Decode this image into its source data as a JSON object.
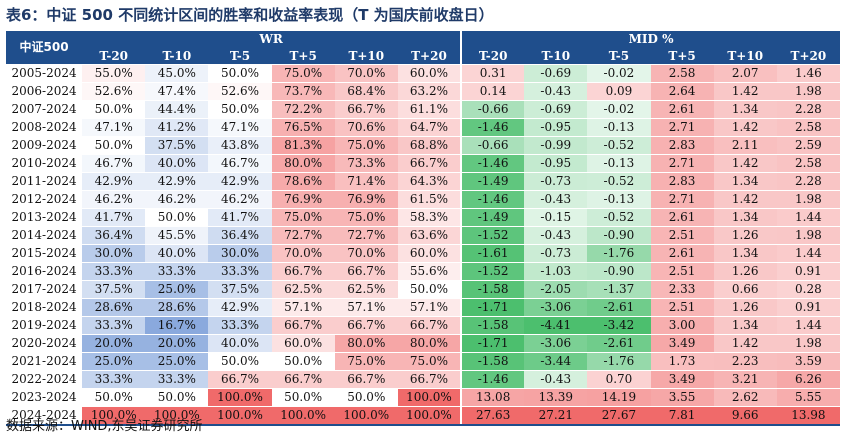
{
  "title": "表6：中证 500 不同统计区间的胜率和收益率表现（T 为国庆前收盘日）",
  "corner_label": "中证500",
  "groups": {
    "wr": "WR",
    "mid": "MID %"
  },
  "columns": [
    "T-20",
    "T-10",
    "T-5",
    "T+5",
    "T+10",
    "T+20"
  ],
  "rows": [
    {
      "period": "2005-2024",
      "wr": [
        "55.0%",
        "45.0%",
        "50.0%",
        "75.0%",
        "70.0%",
        "60.0%"
      ],
      "mid": [
        "0.31",
        "-0.69",
        "-0.02",
        "2.58",
        "2.07",
        "1.46"
      ]
    },
    {
      "period": "2006-2024",
      "wr": [
        "52.6%",
        "47.4%",
        "52.6%",
        "73.7%",
        "68.4%",
        "63.2%"
      ],
      "mid": [
        "0.14",
        "-0.43",
        "0.09",
        "2.64",
        "1.42",
        "1.98"
      ]
    },
    {
      "period": "2007-2024",
      "wr": [
        "50.0%",
        "44.4%",
        "50.0%",
        "72.2%",
        "66.7%",
        "61.1%"
      ],
      "mid": [
        "-0.66",
        "-0.69",
        "-0.02",
        "2.61",
        "1.34",
        "2.28"
      ]
    },
    {
      "period": "2008-2024",
      "wr": [
        "47.1%",
        "41.2%",
        "47.1%",
        "76.5%",
        "70.6%",
        "64.7%"
      ],
      "mid": [
        "-1.46",
        "-0.95",
        "-0.13",
        "2.71",
        "1.42",
        "2.58"
      ]
    },
    {
      "period": "2009-2024",
      "wr": [
        "50.0%",
        "37.5%",
        "43.8%",
        "81.3%",
        "75.0%",
        "68.8%"
      ],
      "mid": [
        "-0.66",
        "-0.99",
        "-0.52",
        "2.83",
        "2.11",
        "2.59"
      ]
    },
    {
      "period": "2010-2024",
      "wr": [
        "46.7%",
        "40.0%",
        "46.7%",
        "80.0%",
        "73.3%",
        "66.7%"
      ],
      "mid": [
        "-1.46",
        "-0.95",
        "-0.13",
        "2.71",
        "1.42",
        "2.58"
      ]
    },
    {
      "period": "2011-2024",
      "wr": [
        "42.9%",
        "42.9%",
        "42.9%",
        "78.6%",
        "71.4%",
        "64.3%"
      ],
      "mid": [
        "-1.49",
        "-0.73",
        "-0.52",
        "2.83",
        "1.34",
        "2.28"
      ]
    },
    {
      "period": "2012-2024",
      "wr": [
        "46.2%",
        "46.2%",
        "46.2%",
        "76.9%",
        "76.9%",
        "61.5%"
      ],
      "mid": [
        "-1.46",
        "-0.43",
        "-0.13",
        "2.71",
        "1.42",
        "1.98"
      ]
    },
    {
      "period": "2013-2024",
      "wr": [
        "41.7%",
        "50.0%",
        "41.7%",
        "75.0%",
        "75.0%",
        "58.3%"
      ],
      "mid": [
        "-1.49",
        "-0.15",
        "-0.52",
        "2.61",
        "1.34",
        "1.44"
      ]
    },
    {
      "period": "2014-2024",
      "wr": [
        "36.4%",
        "45.5%",
        "36.4%",
        "72.7%",
        "72.7%",
        "63.6%"
      ],
      "mid": [
        "-1.52",
        "-0.43",
        "-0.90",
        "2.51",
        "1.26",
        "1.98"
      ]
    },
    {
      "period": "2015-2024",
      "wr": [
        "30.0%",
        "40.0%",
        "30.0%",
        "70.0%",
        "70.0%",
        "60.0%"
      ],
      "mid": [
        "-1.61",
        "-0.73",
        "-1.76",
        "2.61",
        "1.34",
        "1.44"
      ]
    },
    {
      "period": "2016-2024",
      "wr": [
        "33.3%",
        "33.3%",
        "33.3%",
        "66.7%",
        "66.7%",
        "55.6%"
      ],
      "mid": [
        "-1.52",
        "-1.03",
        "-0.90",
        "2.51",
        "1.26",
        "0.91"
      ]
    },
    {
      "period": "2017-2024",
      "wr": [
        "37.5%",
        "25.0%",
        "37.5%",
        "62.5%",
        "62.5%",
        "50.0%"
      ],
      "mid": [
        "-1.58",
        "-2.05",
        "-1.37",
        "2.33",
        "0.66",
        "0.28"
      ]
    },
    {
      "period": "2018-2024",
      "wr": [
        "28.6%",
        "28.6%",
        "42.9%",
        "57.1%",
        "57.1%",
        "57.1%"
      ],
      "mid": [
        "-1.71",
        "-3.06",
        "-2.61",
        "2.51",
        "1.26",
        "0.91"
      ]
    },
    {
      "period": "2019-2024",
      "wr": [
        "33.3%",
        "16.7%",
        "33.3%",
        "66.7%",
        "66.7%",
        "66.7%"
      ],
      "mid": [
        "-1.58",
        "-4.41",
        "-3.42",
        "3.00",
        "1.34",
        "1.44"
      ]
    },
    {
      "period": "2020-2024",
      "wr": [
        "20.0%",
        "20.0%",
        "40.0%",
        "60.0%",
        "80.0%",
        "80.0%"
      ],
      "mid": [
        "-1.71",
        "-3.06",
        "-2.61",
        "3.49",
        "1.42",
        "1.98"
      ]
    },
    {
      "period": "2021-2024",
      "wr": [
        "25.0%",
        "25.0%",
        "50.0%",
        "50.0%",
        "75.0%",
        "75.0%"
      ],
      "mid": [
        "-1.58",
        "-3.44",
        "-1.76",
        "1.73",
        "2.23",
        "3.59"
      ]
    },
    {
      "period": "2022-2024",
      "wr": [
        "33.3%",
        "33.3%",
        "66.7%",
        "66.7%",
        "66.7%",
        "66.7%"
      ],
      "mid": [
        "-1.46",
        "-0.43",
        "0.70",
        "3.49",
        "3.21",
        "6.26"
      ]
    },
    {
      "period": "2023-2024",
      "wr": [
        "50.0%",
        "50.0%",
        "100.0%",
        "50.0%",
        "50.0%",
        "100.0%"
      ],
      "mid": [
        "13.08",
        "13.39",
        "14.19",
        "3.55",
        "2.62",
        "5.55"
      ]
    },
    {
      "period": "2024-2024",
      "wr": [
        "100.0%",
        "100.0%",
        "100.0%",
        "100.0%",
        "100.0%",
        "100.0%"
      ],
      "mid": [
        "27.63",
        "27.21",
        "27.67",
        "7.81",
        "9.66",
        "13.98"
      ]
    }
  ],
  "source": "数据来源：WIND,东吴证券研究所",
  "colors": {
    "header": "#1f4e8c",
    "high": "#f06a6a",
    "low_blue": "#5a86cf",
    "low_green": "#4cbf6e"
  }
}
